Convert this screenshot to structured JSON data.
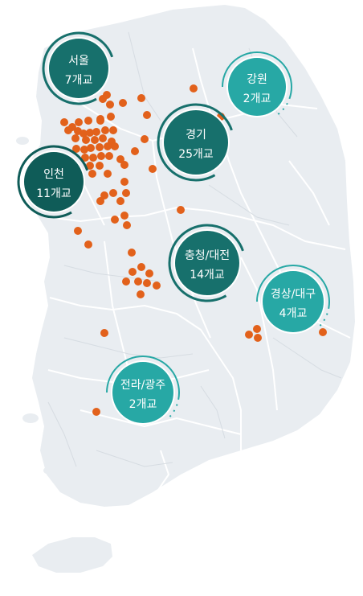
{
  "colors": {
    "land": "#e9edf1",
    "border": "#ffffff",
    "school_dot": "#e2611b",
    "badge_dark": "#17706c",
    "badge_darker": "#0f5c58",
    "badge_teal": "#27a8a5"
  },
  "regions": [
    {
      "id": "seoul",
      "name": "서울",
      "count": "7개교",
      "tone": "badge_dark"
    },
    {
      "id": "gangwon",
      "name": "강원",
      "count": "2개교",
      "tone": "badge_teal"
    },
    {
      "id": "gyeonggi",
      "name": "경기",
      "count": "25개교",
      "tone": "badge_dark"
    },
    {
      "id": "incheon",
      "name": "인천",
      "count": "11개교",
      "tone": "badge_darker"
    },
    {
      "id": "chungcheong",
      "name": "충청/대전",
      "count": "14개교",
      "tone": "badge_dark"
    },
    {
      "id": "gyeongsang",
      "name": "경상/대구",
      "count": "4개교",
      "tone": "badge_teal"
    },
    {
      "id": "jeolla",
      "name": "전라/광주",
      "count": "2개교",
      "tone": "badge_teal"
    }
  ]
}
